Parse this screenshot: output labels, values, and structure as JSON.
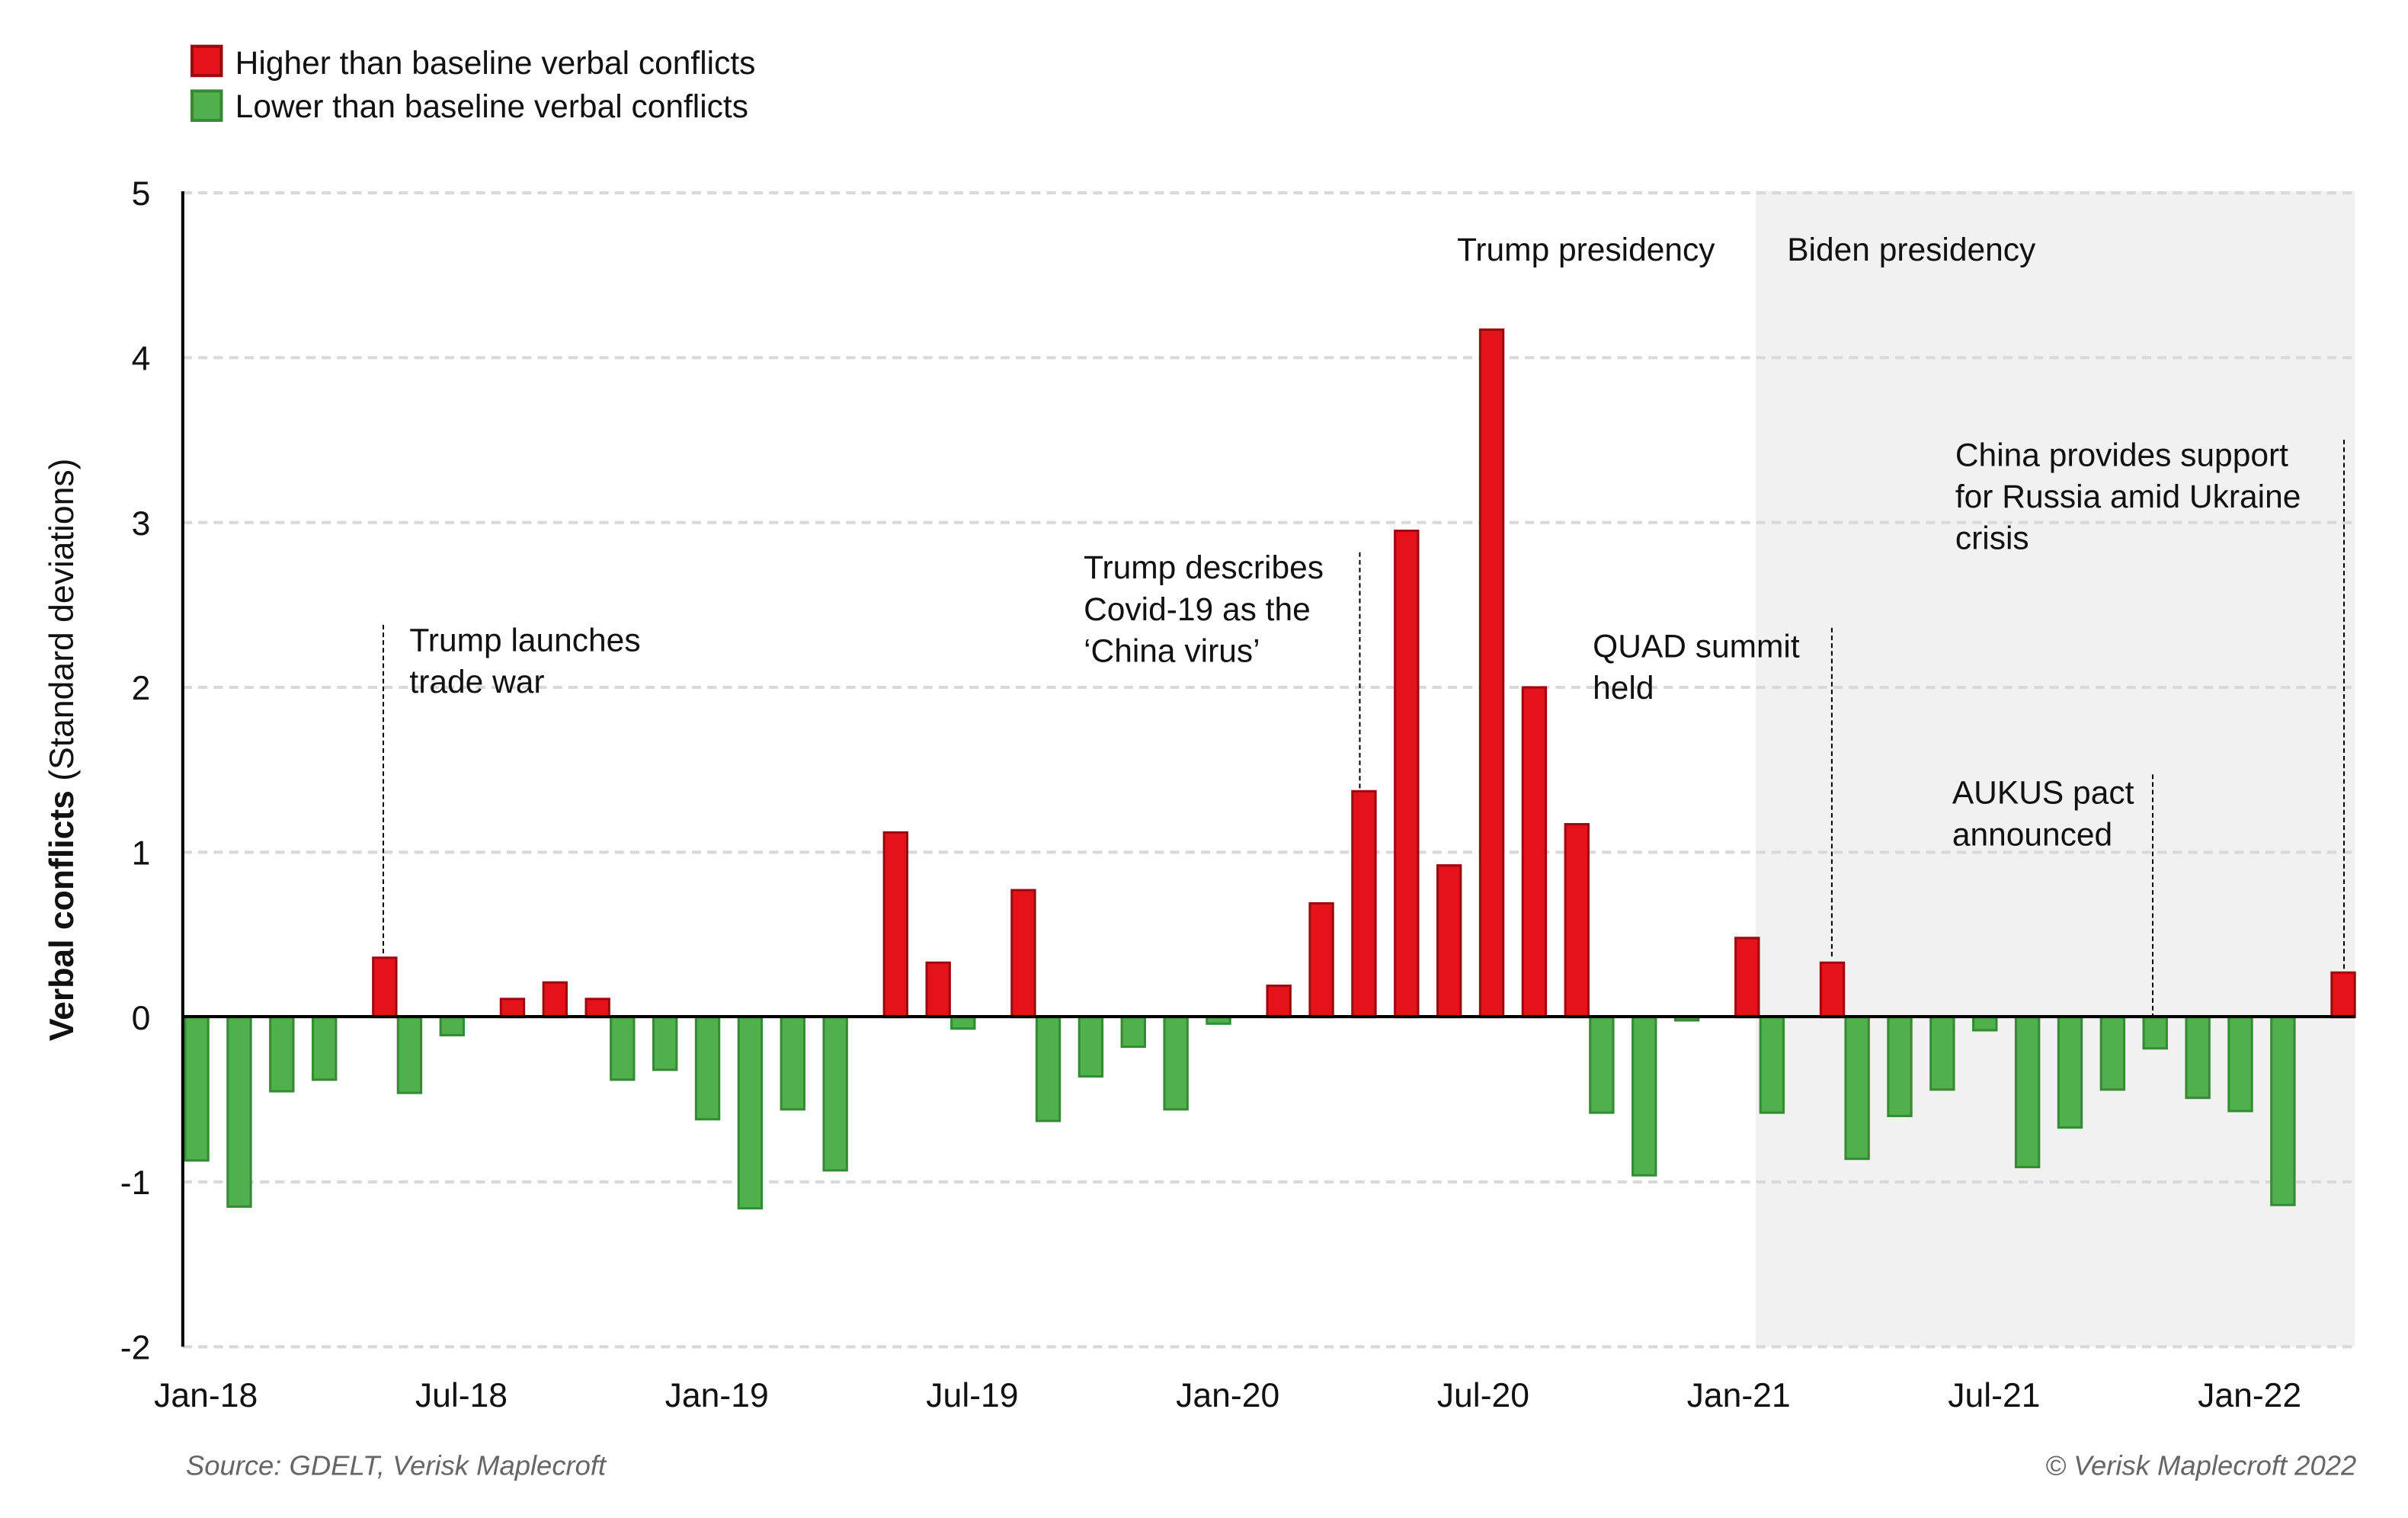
{
  "legend": {
    "higher": "Higher than baseline verbal conflicts",
    "lower": "Lower than baseline verbal conflicts"
  },
  "colors": {
    "higher_fill": "#e5121a",
    "higher_stroke": "#9b0a0f",
    "lower_fill": "#50b04e",
    "lower_stroke": "#358a34",
    "shade": "#f1f1f1",
    "grid": "#d9d9d9"
  },
  "annotations": {
    "trade_war": [
      "Trump launches",
      "trade war"
    ],
    "covid": [
      "Trump describes",
      "Covid-19 as the",
      "‘China virus’"
    ],
    "trump_presidency": "Trump presidency",
    "biden_presidency": "Biden presidency",
    "quad": [
      "QUAD summit",
      "held"
    ],
    "aukus": [
      "AUKUS pact",
      "announced"
    ],
    "russia": [
      "China provides support",
      "for Russia amid Ukraine",
      "crisis"
    ]
  },
  "footer": {
    "source": "Source: GDELT, Verisk Maplecroft",
    "copyright": "© Verisk Maplecroft 2022"
  },
  "chart_data": {
    "type": "bar",
    "ylabel_bold": "Verbal conflicts",
    "ylabel_rest": " (Standard deviations)",
    "ylim": [
      -2,
      5
    ],
    "yticks": [
      "5",
      "4",
      "3",
      "2",
      "1",
      "0",
      "-1",
      "-2"
    ],
    "grid": true,
    "legend_position": "top-left",
    "xtick_labels": [
      "Jan-18",
      "Jul-18",
      "Jan-19",
      "Jul-19",
      "Jan-20",
      "Jul-20",
      "Jan-21",
      "Jul-21",
      "Jan-22"
    ],
    "shaded_period": {
      "label": "Biden presidency",
      "from": "Jan-21",
      "to": "Mar-22"
    },
    "categories": [
      "Jan-18",
      "Feb-18",
      "Mar-18",
      "Apr-18",
      "May-18",
      "Jun-18",
      "Jul-18",
      "Aug-18",
      "Sep-18",
      "Oct-18",
      "Nov-18",
      "Dec-18",
      "Jan-19",
      "Feb-19",
      "Mar-19",
      "Apr-19",
      "May-19",
      "Jun-19",
      "Jul-19",
      "Aug-19",
      "Sep-19",
      "Oct-19",
      "Nov-19",
      "Dec-19",
      "Jan-20",
      "Feb-20",
      "Mar-20",
      "Apr-20",
      "May-20",
      "Jun-20",
      "Jul-20",
      "Aug-20",
      "Sep-20",
      "Oct-20",
      "Nov-20",
      "Dec-20",
      "Jan-21",
      "Feb-21",
      "Mar-21",
      "Apr-21",
      "May-21",
      "Jun-21",
      "Jul-21",
      "Aug-21",
      "Sep-21",
      "Oct-21",
      "Nov-21",
      "Dec-21",
      "Jan-22",
      "Feb-22",
      "Mar-22"
    ],
    "series": [
      {
        "name": "Higher than baseline verbal conflicts",
        "values": [
          0,
          0,
          0,
          0,
          0.36,
          0,
          0,
          0.11,
          0.21,
          0.11,
          0,
          0,
          0,
          0,
          0,
          0,
          1.12,
          0.33,
          0,
          0.77,
          0,
          0,
          0,
          0,
          0,
          0.19,
          0.69,
          1.37,
          2.95,
          0.92,
          4.17,
          2.0,
          1.17,
          0,
          0,
          0,
          0.48,
          0,
          0.33,
          0,
          0,
          0,
          0,
          0,
          0,
          0,
          0,
          0,
          0,
          0,
          0.27
        ]
      },
      {
        "name": "Lower than baseline verbal conflicts",
        "values": [
          -0.87,
          -1.15,
          -0.45,
          -0.38,
          0,
          -0.46,
          -0.11,
          0,
          0,
          0,
          -0.38,
          -0.32,
          -0.62,
          -1.16,
          -0.56,
          -0.93,
          0,
          0,
          -0.07,
          0,
          -0.63,
          -0.36,
          -0.18,
          -0.56,
          -0.04,
          0,
          0,
          0,
          0,
          0,
          0,
          0,
          0,
          -0.58,
          -0.96,
          -0.02,
          0,
          -0.58,
          0,
          -0.86,
          -0.6,
          -0.44,
          -0.08,
          -0.91,
          -0.67,
          -0.44,
          -0.19,
          -0.49,
          -0.57,
          -1.14,
          0
        ]
      }
    ]
  }
}
